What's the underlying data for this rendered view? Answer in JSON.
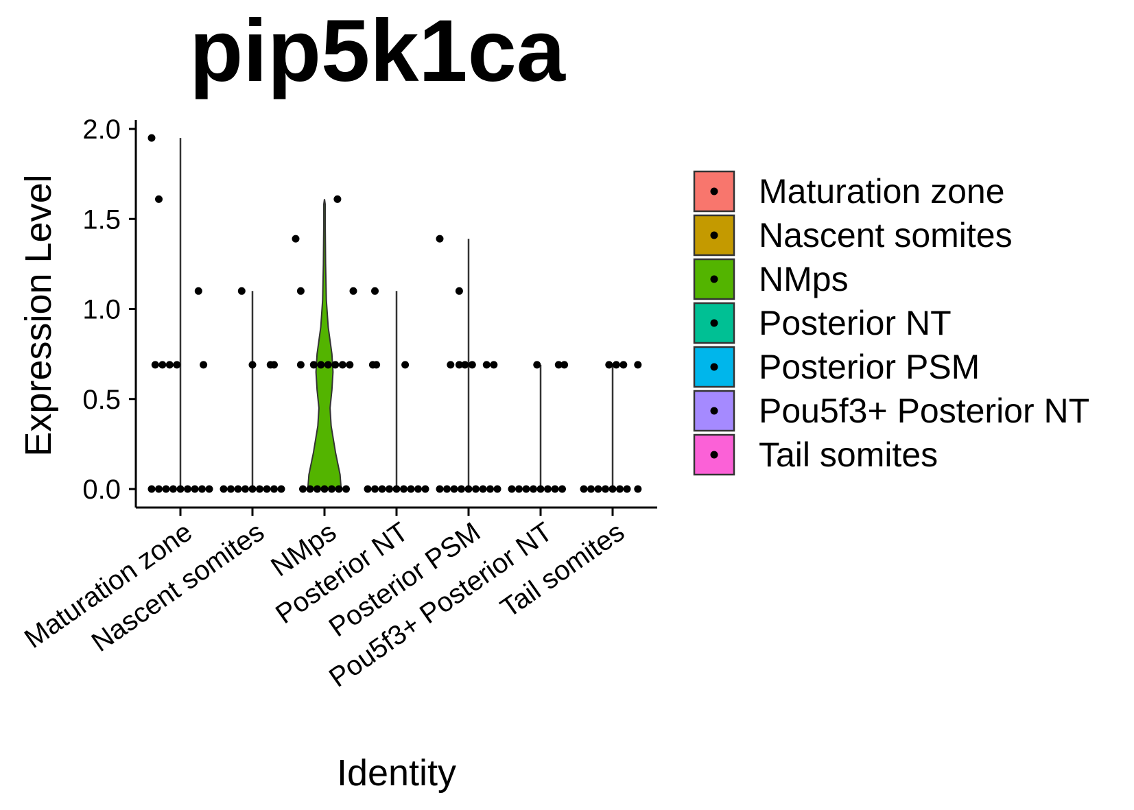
{
  "chart_data": {
    "type": "violin",
    "title": "pip5k1ca",
    "xlabel": "Identity",
    "ylabel": "Expression Level",
    "ylim": [
      -0.08,
      2.05
    ],
    "yticks": [
      "0.0",
      "0.5",
      "1.0",
      "1.5",
      "2.0"
    ],
    "ytick_values": [
      0,
      0.5,
      1.0,
      1.5,
      2.0
    ],
    "categories": [
      "Maturation zone",
      "Nascent somites",
      "NMps",
      "Posterior NT",
      "Posterior PSM",
      "Pou5f3+ Posterior NT",
      "Tail somites"
    ],
    "colors": [
      "#F8766D",
      "#C49A00",
      "#53B400",
      "#00C094",
      "#00B6EB",
      "#A58AFF",
      "#FB61D7"
    ],
    "legend_position": "right",
    "grid": false,
    "series": [
      {
        "name": "Maturation zone",
        "max": 1.95,
        "points": [
          {
            "dx": -0.4,
            "y": 1.95
          },
          {
            "dx": -0.3,
            "y": 1.61
          },
          {
            "dx": 0.25,
            "y": 1.1
          },
          {
            "dx": -0.35,
            "y": 0.69
          },
          {
            "dx": -0.25,
            "y": 0.69
          },
          {
            "dx": -0.15,
            "y": 0.69
          },
          {
            "dx": -0.05,
            "y": 0.69
          },
          {
            "dx": 0.32,
            "y": 0.69
          },
          {
            "dx": -0.4,
            "y": 0
          },
          {
            "dx": -0.3,
            "y": 0
          },
          {
            "dx": -0.2,
            "y": 0
          },
          {
            "dx": -0.1,
            "y": 0
          },
          {
            "dx": 0.0,
            "y": 0
          },
          {
            "dx": 0.1,
            "y": 0
          },
          {
            "dx": 0.2,
            "y": 0
          },
          {
            "dx": 0.3,
            "y": 0
          },
          {
            "dx": 0.4,
            "y": 0
          }
        ]
      },
      {
        "name": "Nascent somites",
        "max": 1.1,
        "points": [
          {
            "dx": -0.15,
            "y": 1.1
          },
          {
            "dx": 0.0,
            "y": 0.69
          },
          {
            "dx": 0.25,
            "y": 0.69
          },
          {
            "dx": 0.3,
            "y": 0.69
          },
          {
            "dx": -0.4,
            "y": 0
          },
          {
            "dx": -0.3,
            "y": 0
          },
          {
            "dx": -0.2,
            "y": 0
          },
          {
            "dx": -0.1,
            "y": 0
          },
          {
            "dx": 0.0,
            "y": 0
          },
          {
            "dx": 0.1,
            "y": 0
          },
          {
            "dx": 0.2,
            "y": 0
          },
          {
            "dx": 0.3,
            "y": 0
          },
          {
            "dx": 0.4,
            "y": 0
          }
        ]
      },
      {
        "name": "NMps",
        "max": 1.61,
        "violin": true,
        "points": [
          {
            "dx": 0.18,
            "y": 1.61
          },
          {
            "dx": -0.4,
            "y": 1.39
          },
          {
            "dx": -0.33,
            "y": 1.1
          },
          {
            "dx": 0.4,
            "y": 1.1
          },
          {
            "dx": -0.33,
            "y": 0.69
          },
          {
            "dx": -0.15,
            "y": 0.69
          },
          {
            "dx": -0.05,
            "y": 0.69
          },
          {
            "dx": 0.05,
            "y": 0.69
          },
          {
            "dx": 0.15,
            "y": 0.69
          },
          {
            "dx": 0.25,
            "y": 0.69
          },
          {
            "dx": 0.35,
            "y": 0.69
          },
          {
            "dx": -0.3,
            "y": 0
          },
          {
            "dx": -0.2,
            "y": 0
          },
          {
            "dx": -0.1,
            "y": 0
          },
          {
            "dx": 0.0,
            "y": 0
          },
          {
            "dx": 0.1,
            "y": 0
          },
          {
            "dx": 0.2,
            "y": 0
          },
          {
            "dx": 0.3,
            "y": 0
          }
        ]
      },
      {
        "name": "Posterior NT",
        "max": 1.1,
        "points": [
          {
            "dx": -0.3,
            "y": 1.1
          },
          {
            "dx": -0.33,
            "y": 0.69
          },
          {
            "dx": -0.28,
            "y": 0.69
          },
          {
            "dx": 0.12,
            "y": 0.69
          },
          {
            "dx": -0.4,
            "y": 0
          },
          {
            "dx": -0.3,
            "y": 0
          },
          {
            "dx": -0.2,
            "y": 0
          },
          {
            "dx": -0.1,
            "y": 0
          },
          {
            "dx": 0.0,
            "y": 0
          },
          {
            "dx": 0.1,
            "y": 0
          },
          {
            "dx": 0.2,
            "y": 0
          },
          {
            "dx": 0.3,
            "y": 0
          },
          {
            "dx": 0.4,
            "y": 0
          }
        ]
      },
      {
        "name": "Posterior PSM",
        "max": 1.39,
        "points": [
          {
            "dx": -0.4,
            "y": 1.39
          },
          {
            "dx": -0.13,
            "y": 1.1
          },
          {
            "dx": -0.25,
            "y": 0.69
          },
          {
            "dx": -0.13,
            "y": 0.69
          },
          {
            "dx": -0.05,
            "y": 0.69
          },
          {
            "dx": 0.05,
            "y": 0.69
          },
          {
            "dx": 0.25,
            "y": 0.69
          },
          {
            "dx": 0.35,
            "y": 0.69
          },
          {
            "dx": -0.4,
            "y": 0
          },
          {
            "dx": -0.3,
            "y": 0
          },
          {
            "dx": -0.2,
            "y": 0
          },
          {
            "dx": -0.1,
            "y": 0
          },
          {
            "dx": 0.0,
            "y": 0
          },
          {
            "dx": 0.1,
            "y": 0
          },
          {
            "dx": 0.2,
            "y": 0
          },
          {
            "dx": 0.3,
            "y": 0
          },
          {
            "dx": 0.4,
            "y": 0
          }
        ]
      },
      {
        "name": "Pou5f3+ Posterior NT",
        "max": 0.69,
        "points": [
          {
            "dx": -0.05,
            "y": 0.69
          },
          {
            "dx": 0.25,
            "y": 0.69
          },
          {
            "dx": 0.33,
            "y": 0.69
          },
          {
            "dx": -0.4,
            "y": 0
          },
          {
            "dx": -0.3,
            "y": 0
          },
          {
            "dx": -0.2,
            "y": 0
          },
          {
            "dx": -0.1,
            "y": 0
          },
          {
            "dx": 0.0,
            "y": 0
          },
          {
            "dx": 0.1,
            "y": 0
          },
          {
            "dx": 0.2,
            "y": 0
          },
          {
            "dx": 0.3,
            "y": 0
          }
        ]
      },
      {
        "name": "Tail somites",
        "max": 0.69,
        "points": [
          {
            "dx": -0.05,
            "y": 0.69
          },
          {
            "dx": 0.05,
            "y": 0.69
          },
          {
            "dx": 0.15,
            "y": 0.69
          },
          {
            "dx": 0.35,
            "y": 0.69
          },
          {
            "dx": -0.4,
            "y": 0
          },
          {
            "dx": -0.3,
            "y": 0
          },
          {
            "dx": -0.2,
            "y": 0
          },
          {
            "dx": -0.1,
            "y": 0
          },
          {
            "dx": 0.0,
            "y": 0
          },
          {
            "dx": 0.1,
            "y": 0
          },
          {
            "dx": 0.2,
            "y": 0
          },
          {
            "dx": 0.35,
            "y": 0
          }
        ]
      }
    ],
    "nmps_violin_profile": [
      {
        "y": 0.0,
        "w": 0.45
      },
      {
        "y": 0.08,
        "w": 0.42
      },
      {
        "y": 0.2,
        "w": 0.3
      },
      {
        "y": 0.35,
        "w": 0.18
      },
      {
        "y": 0.45,
        "w": 0.15
      },
      {
        "y": 0.55,
        "w": 0.2
      },
      {
        "y": 0.65,
        "w": 0.23
      },
      {
        "y": 0.75,
        "w": 0.2
      },
      {
        "y": 0.9,
        "w": 0.1
      },
      {
        "y": 1.05,
        "w": 0.05
      },
      {
        "y": 1.25,
        "w": 0.03
      },
      {
        "y": 1.45,
        "w": 0.02
      },
      {
        "y": 1.58,
        "w": 0.02
      },
      {
        "y": 1.61,
        "w": 0.0
      }
    ]
  }
}
